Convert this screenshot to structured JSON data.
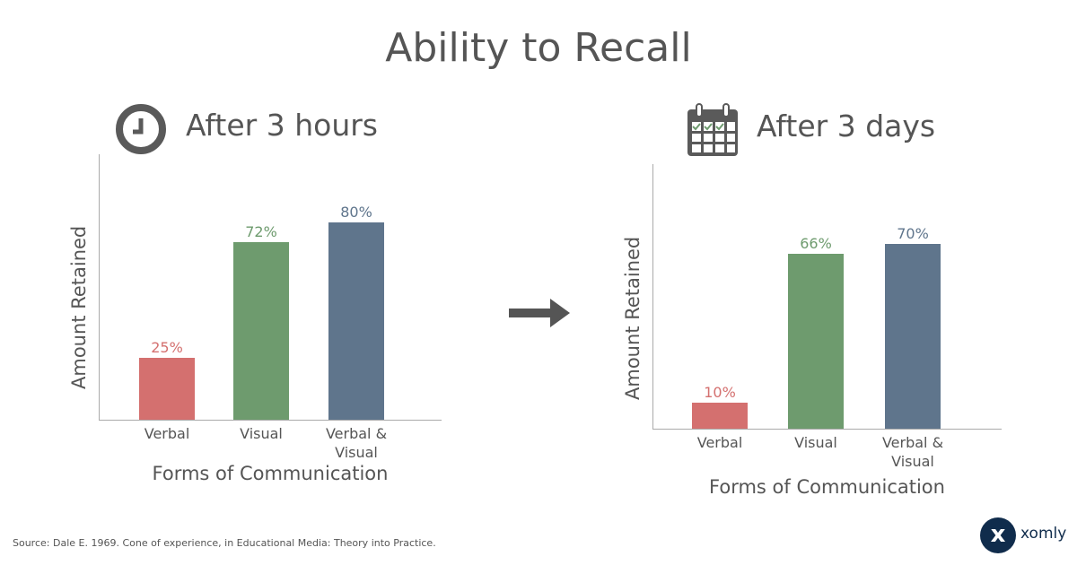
{
  "title": "Ability to Recall",
  "colors": {
    "verbal": "#d4706f",
    "visual": "#6e9b6e",
    "both": "#5f758c",
    "text": "#555555"
  },
  "chart_data": [
    {
      "type": "bar",
      "title": "After 3 hours",
      "icon": "clock-icon",
      "xlabel": "Forms of Communication",
      "ylabel": "Amount Retained",
      "categories": [
        "Verbal",
        "Visual",
        "Verbal & Visual"
      ],
      "values": [
        25,
        72,
        80
      ],
      "labels": [
        "25%",
        "72%",
        "80%"
      ]
    },
    {
      "type": "bar",
      "title": "After 3 days",
      "icon": "calendar-icon",
      "xlabel": "Forms of Communication",
      "ylabel": "Amount Retained",
      "categories": [
        "Verbal",
        "Visual",
        "Verbal & Visual"
      ],
      "values": [
        10,
        66,
        70
      ],
      "labels": [
        "10%",
        "66%",
        "70%"
      ]
    }
  ],
  "source": "Source: Dale E. 1969. Cone of experience, in Educational Media: Theory into Practice.",
  "brand": {
    "name": "xomly",
    "mark": "x"
  }
}
